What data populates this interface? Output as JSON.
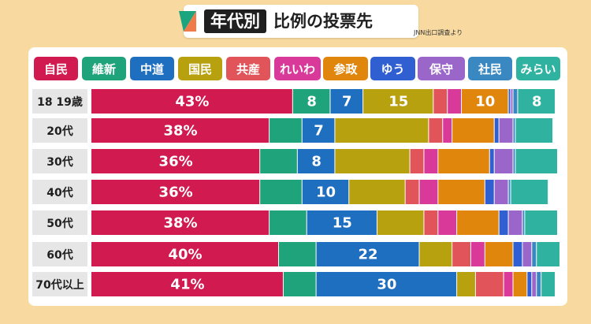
{
  "title": {
    "left": "年代別",
    "right": "比例の投票先"
  },
  "source_note": "JNN出口調査より",
  "colors": {
    "自民": "#d11a4f",
    "維新": "#1ea37a",
    "中道": "#1f6fc0",
    "国民": "#b8a10e",
    "共産": "#e1545a",
    "れいわ": "#d93a9a",
    "参政": "#e0860d",
    "ゆう": "#2f5fd1",
    "保守": "#9a66c9",
    "社民": "#3a88c2",
    "みらい": "#2fb2a0"
  },
  "chart_data": {
    "type": "bar",
    "stacked": true,
    "orientation": "horizontal",
    "title": "年代別 比例の投票先",
    "categories": [
      "18 19歳",
      "20代",
      "30代",
      "40代",
      "50代",
      "60代",
      "70代以上"
    ],
    "series": [
      {
        "name": "自民",
        "values": [
          43,
          38,
          36,
          36,
          38,
          40,
          41
        ],
        "labels": [
          "43%",
          "38%",
          "36%",
          "36%",
          "38%",
          "40%",
          "41%"
        ]
      },
      {
        "name": "維新",
        "values": [
          8,
          7,
          8,
          9,
          8,
          8,
          7
        ],
        "labels": [
          "8",
          "",
          "",
          "",
          "",
          "",
          ""
        ]
      },
      {
        "name": "中道",
        "values": [
          7,
          7,
          8,
          10,
          15,
          22,
          30
        ],
        "labels": [
          "7",
          "7",
          "8",
          "10",
          "15",
          "22",
          "30"
        ]
      },
      {
        "name": "国民",
        "values": [
          15,
          20,
          16,
          12,
          10,
          7,
          4
        ],
        "labels": [
          "15",
          "",
          "",
          "",
          "",
          "",
          ""
        ]
      },
      {
        "name": "共産",
        "values": [
          3,
          3,
          3,
          3,
          3,
          4,
          6
        ],
        "labels": [
          "",
          "",
          "",
          "",
          "",
          "",
          ""
        ]
      },
      {
        "name": "れいわ",
        "values": [
          3,
          2,
          3,
          4,
          4,
          3,
          2
        ],
        "labels": [
          "",
          "",
          "",
          "",
          "",
          "",
          ""
        ]
      },
      {
        "name": "参政",
        "values": [
          10,
          9,
          11,
          10,
          9,
          6,
          3
        ],
        "labels": [
          "10",
          "",
          "",
          "",
          "",
          "",
          ""
        ]
      },
      {
        "name": "ゆう",
        "values": [
          0.5,
          1,
          1,
          2,
          2,
          2,
          1
        ],
        "labels": [
          "",
          "",
          "",
          "",
          "",
          "",
          ""
        ]
      },
      {
        "name": "保守",
        "values": [
          0.5,
          3,
          4,
          3,
          3,
          2,
          1
        ],
        "labels": [
          "",
          "",
          "",
          "",
          "",
          "",
          ""
        ]
      },
      {
        "name": "社民",
        "values": [
          1,
          0.5,
          0.5,
          0.5,
          0.5,
          1,
          1
        ],
        "labels": [
          "",
          "",
          "",
          "",
          "",
          "",
          ""
        ]
      },
      {
        "name": "みらい",
        "values": [
          8,
          8,
          9,
          8,
          7,
          5,
          3
        ],
        "labels": [
          "8",
          "",
          "",
          "",
          "",
          "",
          ""
        ]
      }
    ],
    "legend_position": "top",
    "grid": false
  }
}
